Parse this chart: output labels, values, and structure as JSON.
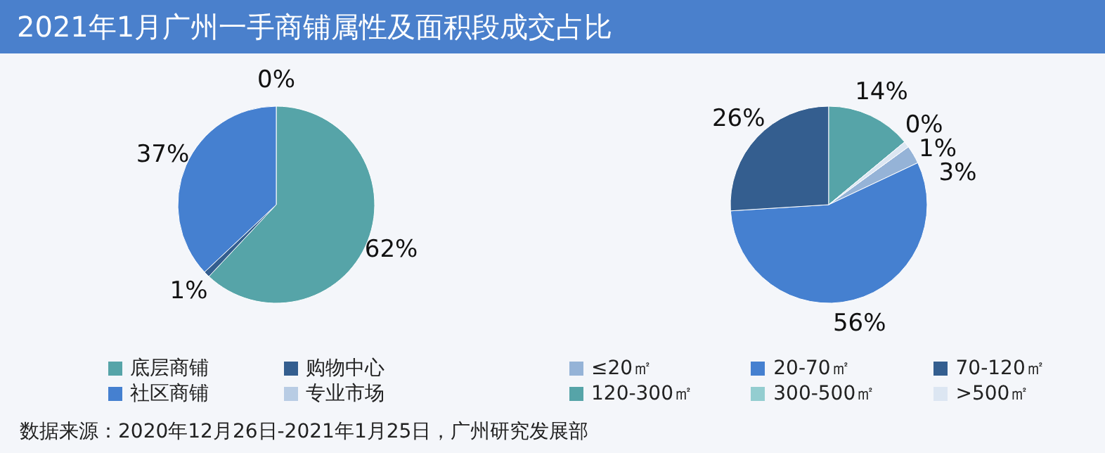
{
  "chart_data": [
    {
      "type": "pie",
      "title": "2021年1月广州一手商铺属性及面积段成交占比",
      "categories": [
        "底层商铺",
        "购物中心",
        "社区商铺",
        "专业市场"
      ],
      "values": [
        62,
        1,
        37,
        0
      ],
      "value_labels": [
        "62%",
        "1%",
        "37%",
        "0%"
      ],
      "colors": [
        "#56a4a8",
        "#345e8f",
        "#4580d0",
        "#b8cce4"
      ],
      "legend": "bottom",
      "annotations": [
        "数据来源：2020年12月26日-2021年1月25日，广州研究发展部"
      ]
    },
    {
      "type": "pie",
      "categories": [
        "≤20㎡",
        "20-70㎡",
        "70-120㎡",
        "120-300㎡",
        "300-500㎡",
        ">500㎡"
      ],
      "values": [
        3,
        56,
        26,
        14,
        0,
        1
      ],
      "value_labels": [
        "3%",
        "56%",
        "26%",
        "14%",
        "0%",
        "1%"
      ],
      "colors": [
        "#95b3d7",
        "#4580d0",
        "#345e8f",
        "#56a4a8",
        "#93cdd0",
        "#dce6f2"
      ],
      "legend": "bottom"
    }
  ]
}
